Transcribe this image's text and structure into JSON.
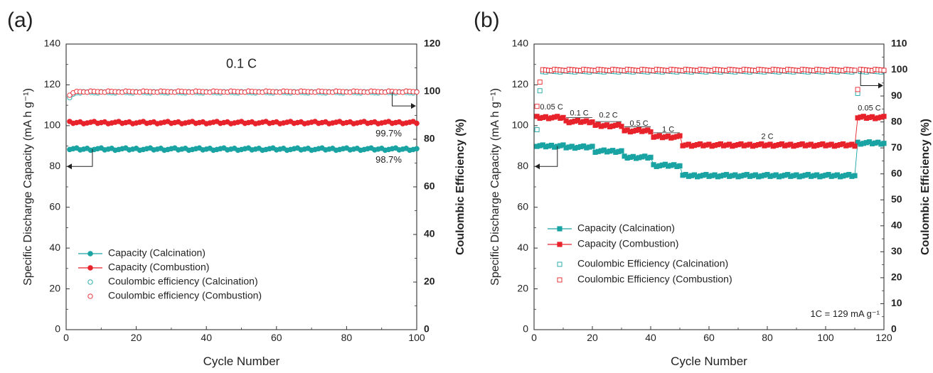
{
  "panels": [
    {
      "id": "a",
      "panel_label": "(a)",
      "chart_data": {
        "type": "scatter",
        "xlabel": "Cycle Number",
        "ylabel_left": "Specific Discharge Capacity (mA h g⁻¹)",
        "ylabel_right": "Coulombic Efficiency (%)",
        "xlim": [
          0,
          100
        ],
        "ylim_left": [
          0,
          140
        ],
        "ylim_right": [
          0,
          120
        ],
        "xticks": [
          0,
          20,
          40,
          60,
          80,
          100
        ],
        "yticks_left": [
          0,
          20,
          40,
          60,
          80,
          100,
          120,
          140
        ],
        "yticks_right": [
          0,
          20,
          40,
          60,
          80,
          100,
          120
        ],
        "x_range": [
          1,
          100
        ],
        "series": [
          {
            "name": "Capacity (Calcination)",
            "kind": "capacity",
            "axis": "left",
            "color": "#1aa3a3",
            "marker": "circle-filled",
            "segments": [
              {
                "from": 1,
                "to": 100,
                "value": 88.5
              }
            ]
          },
          {
            "name": "Capacity (Combustion)",
            "kind": "capacity",
            "axis": "left",
            "color": "#e8222a",
            "marker": "circle-filled",
            "segments": [
              {
                "from": 1,
                "to": 100,
                "value": 101.5
              }
            ]
          },
          {
            "name": "Coulombic efficiency (Calcination)",
            "kind": "efficiency",
            "axis": "right",
            "color": "#1aa3a3",
            "marker": "circle-open",
            "first": 97.5,
            "value": 99.7
          },
          {
            "name": "Coulombic efficiency (Combustion)",
            "kind": "efficiency",
            "axis": "right",
            "color": "#e8222a",
            "marker": "circle-open",
            "first": 98.5,
            "value": 100.0
          }
        ],
        "annotations": [
          {
            "text": "0.1 C",
            "x": 50,
            "y": 130,
            "axis": "left"
          },
          {
            "text": "99.7%",
            "x": 92,
            "y": 96,
            "axis": "left"
          },
          {
            "text": "98.7%",
            "x": 92,
            "y": 83,
            "axis": "left"
          }
        ],
        "legend_position": "bottom-left"
      }
    },
    {
      "id": "b",
      "panel_label": "(b)",
      "chart_data": {
        "type": "scatter",
        "xlabel": "Cycle Number",
        "ylabel_left": "Specific Discharge Capacity (mA h g⁻¹)",
        "ylabel_right": "Coulombic Efficiency (%)",
        "xlim": [
          0,
          120
        ],
        "ylim_left": [
          0,
          140
        ],
        "ylim_right": [
          0,
          110
        ],
        "xticks": [
          0,
          20,
          40,
          60,
          80,
          100,
          120
        ],
        "yticks_left": [
          0,
          20,
          40,
          60,
          80,
          100,
          120,
          140
        ],
        "yticks_right": [
          0,
          10,
          20,
          30,
          40,
          50,
          60,
          70,
          80,
          90,
          100,
          110
        ],
        "x_range": [
          1,
          120
        ],
        "series": [
          {
            "name": "Capacity (Calcination)",
            "kind": "capacity",
            "axis": "left",
            "color": "#1aa3a3",
            "marker": "square-filled",
            "segments": [
              {
                "from": 1,
                "to": 10,
                "value": 90
              },
              {
                "from": 11,
                "to": 20,
                "value": 89.5
              },
              {
                "from": 21,
                "to": 30,
                "value": 87.5
              },
              {
                "from": 31,
                "to": 40,
                "value": 84.5
              },
              {
                "from": 41,
                "to": 50,
                "value": 80.5
              },
              {
                "from": 51,
                "to": 110,
                "value": 75.5
              },
              {
                "from": 111,
                "to": 120,
                "value": 91.5
              }
            ]
          },
          {
            "name": "Capacity (Combustion)",
            "kind": "capacity",
            "axis": "left",
            "color": "#e8222a",
            "marker": "square-filled",
            "segments": [
              {
                "from": 1,
                "to": 10,
                "value": 104
              },
              {
                "from": 11,
                "to": 20,
                "value": 102
              },
              {
                "from": 21,
                "to": 30,
                "value": 100
              },
              {
                "from": 31,
                "to": 40,
                "value": 97.5
              },
              {
                "from": 41,
                "to": 50,
                "value": 94.5
              },
              {
                "from": 51,
                "to": 110,
                "value": 90.5
              },
              {
                "from": 111,
                "to": 120,
                "value": 104
              }
            ]
          },
          {
            "name": "Coulombic Efficiency (Calcination)",
            "kind": "efficiency",
            "axis": "right",
            "color": "#1aa3a3",
            "marker": "square-open",
            "first": 77,
            "value": 99.5,
            "dips": [
              {
                "x": 111,
                "value": 91
              }
            ]
          },
          {
            "name": "Coulombic Efficiency (Combustion)",
            "kind": "efficiency",
            "axis": "right",
            "color": "#e8222a",
            "marker": "square-open",
            "first": 86,
            "value": 100,
            "dips": [
              {
                "x": 111,
                "value": 92.5
              }
            ]
          }
        ],
        "annotations": [
          {
            "text": "0.05 C",
            "x": 6,
            "y": 109,
            "axis": "left"
          },
          {
            "text": "0.1 C",
            "x": 15.5,
            "y": 106,
            "axis": "left"
          },
          {
            "text": "0.2 C",
            "x": 25.5,
            "y": 105,
            "axis": "left"
          },
          {
            "text": "0.5 C",
            "x": 36,
            "y": 101,
            "axis": "left"
          },
          {
            "text": "1 C",
            "x": 46,
            "y": 98,
            "axis": "left"
          },
          {
            "text": "2 C",
            "x": 80,
            "y": 94.5,
            "axis": "left"
          },
          {
            "text": "0.05 C",
            "x": 115,
            "y": 108.5,
            "axis": "left"
          }
        ],
        "note": "1C = 129 mA g⁻¹",
        "legend_position": "bottom-left"
      }
    }
  ]
}
